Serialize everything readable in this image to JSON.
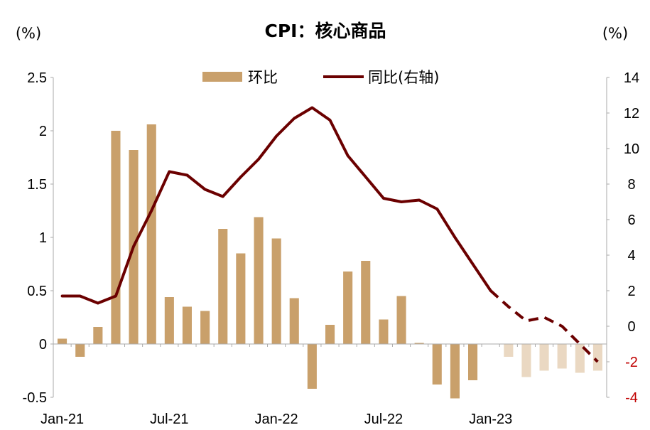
{
  "chart_data": {
    "type": "bar+line",
    "title": "CPI：核心商品",
    "left_unit": "(%)",
    "right_unit": "(%)",
    "x_ticks": [
      "Jan-21",
      "Jul-21",
      "Jan-22",
      "Jul-22",
      "Jan-23"
    ],
    "left_axis": {
      "min": -0.5,
      "max": 2.5,
      "ticks": [
        "-0.5",
        "0",
        "0.5",
        "1",
        "1.5",
        "2",
        "2.5"
      ]
    },
    "right_axis": {
      "min": -4,
      "max": 14,
      "ticks": [
        "-4",
        "-2",
        "0",
        "2",
        "4",
        "6",
        "8",
        "10",
        "12",
        "14"
      ],
      "negative_tick_color": "#c00000"
    },
    "legend": [
      {
        "label": "环比",
        "kind": "bar",
        "color": "#c9a06b"
      },
      {
        "label": "同比(右轴)",
        "kind": "line",
        "color": "#6b0000"
      }
    ],
    "months": [
      "2021-01",
      "2021-02",
      "2021-03",
      "2021-04",
      "2021-05",
      "2021-06",
      "2021-07",
      "2021-08",
      "2021-09",
      "2021-10",
      "2021-11",
      "2021-12",
      "2022-01",
      "2022-02",
      "2022-03",
      "2022-04",
      "2022-05",
      "2022-06",
      "2022-07",
      "2022-08",
      "2022-09",
      "2022-10",
      "2022-11",
      "2022-12",
      "2023-01",
      "2023-02",
      "2023-03",
      "2023-04",
      "2023-05",
      "2023-06",
      "2023-07"
    ],
    "series": [
      {
        "name": "环比",
        "axis": "left",
        "kind": "bar",
        "color": "#c9a06b",
        "projected_color": "#ead8c2",
        "projected_from_index": 25,
        "values": [
          0.05,
          -0.12,
          0.16,
          2.0,
          1.82,
          2.06,
          0.44,
          0.35,
          0.31,
          1.08,
          0.85,
          1.19,
          0.99,
          0.43,
          -0.42,
          0.18,
          0.68,
          0.78,
          0.23,
          0.45,
          0.01,
          -0.38,
          -0.51,
          -0.34,
          null,
          -0.12,
          -0.31,
          -0.25,
          -0.23,
          -0.27,
          -0.25
        ]
      },
      {
        "name": "同比(右轴)",
        "axis": "right",
        "kind": "line",
        "color": "#6b0000",
        "dashed_from_index": 24,
        "values": [
          1.7,
          1.7,
          1.3,
          1.7,
          4.5,
          6.5,
          8.7,
          8.5,
          7.7,
          7.3,
          8.4,
          9.4,
          10.7,
          11.7,
          12.3,
          11.6,
          9.6,
          8.4,
          7.2,
          7.0,
          7.1,
          6.6,
          5.0,
          3.5,
          2.0,
          1.1,
          0.3,
          0.5,
          0.0,
          -1.0,
          -2.0
        ]
      }
    ]
  }
}
